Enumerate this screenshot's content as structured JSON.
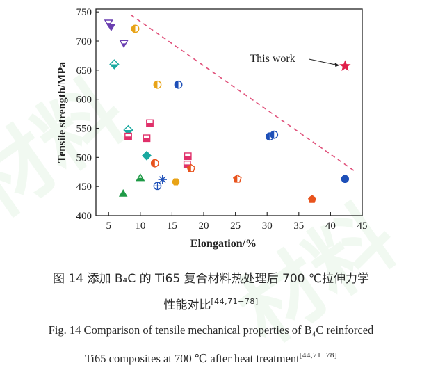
{
  "chart_data": {
    "type": "scatter",
    "xlabel": "Elongation/%",
    "ylabel": "Tensile strength/MPa",
    "xlim": [
      3,
      45
    ],
    "ylim": [
      400,
      755
    ],
    "xticks": [
      5,
      10,
      15,
      20,
      25,
      30,
      35,
      40,
      45
    ],
    "yticks": [
      400,
      450,
      500,
      550,
      600,
      650,
      700,
      750
    ],
    "annotation": {
      "text": "This work",
      "x": 42.3,
      "y": 657
    },
    "trend_line": {
      "style": "dashed",
      "color": "#e0507a",
      "points": [
        [
          8.5,
          745
        ],
        [
          44,
          475
        ]
      ]
    },
    "points": [
      {
        "x": 5.0,
        "y": 731,
        "marker": "tri-down-half",
        "color": "#6a3fb0"
      },
      {
        "x": 5.4,
        "y": 724,
        "marker": "tri-down",
        "color": "#6a3fb0"
      },
      {
        "x": 7.4,
        "y": 696,
        "marker": "tri-down-half",
        "color": "#6a3fb0"
      },
      {
        "x": 9.2,
        "y": 721,
        "marker": "circle-half",
        "color": "#e8a317"
      },
      {
        "x": 5.9,
        "y": 660,
        "marker": "diamond-half",
        "color": "#1aa9a0"
      },
      {
        "x": 12.7,
        "y": 625,
        "marker": "circle-half",
        "color": "#e8a317"
      },
      {
        "x": 16.0,
        "y": 625,
        "marker": "circle-half",
        "color": "#1d4fb8"
      },
      {
        "x": 8.1,
        "y": 547,
        "marker": "diamond-half",
        "color": "#1aa9a0"
      },
      {
        "x": 8.1,
        "y": 536,
        "marker": "square-half",
        "color": "#e0306a"
      },
      {
        "x": 11.5,
        "y": 559,
        "marker": "square-half",
        "color": "#e0306a"
      },
      {
        "x": 11.0,
        "y": 533,
        "marker": "square-half",
        "color": "#e0306a"
      },
      {
        "x": 11.0,
        "y": 503,
        "marker": "diamond",
        "color": "#1aa9a0"
      },
      {
        "x": 12.3,
        "y": 490,
        "marker": "circle-half",
        "color": "#e8531d"
      },
      {
        "x": 17.5,
        "y": 502,
        "marker": "square-half",
        "color": "#e0306a"
      },
      {
        "x": 17.4,
        "y": 488,
        "marker": "square-half",
        "color": "#e0306a"
      },
      {
        "x": 18.0,
        "y": 481,
        "marker": "pentagon-half",
        "color": "#e8531d"
      },
      {
        "x": 7.3,
        "y": 438,
        "marker": "triangle",
        "color": "#1f9a47"
      },
      {
        "x": 10.0,
        "y": 465,
        "marker": "triangle-half",
        "color": "#1f9a47"
      },
      {
        "x": 13.5,
        "y": 462,
        "marker": "asterisk",
        "color": "#1d4fb8"
      },
      {
        "x": 12.7,
        "y": 451,
        "marker": "circle-cross",
        "color": "#1d4fb8"
      },
      {
        "x": 15.6,
        "y": 458,
        "marker": "hexagon",
        "color": "#e8a317"
      },
      {
        "x": 25.3,
        "y": 463,
        "marker": "pentagon-half",
        "color": "#e8531d"
      },
      {
        "x": 30.4,
        "y": 536,
        "marker": "circle-half",
        "color": "#1d4fb8"
      },
      {
        "x": 31.1,
        "y": 539,
        "marker": "circle-half",
        "color": "#1d4fb8"
      },
      {
        "x": 37.1,
        "y": 428,
        "marker": "pentagon",
        "color": "#e8531d"
      },
      {
        "x": 42.3,
        "y": 463,
        "marker": "circle",
        "color": "#1d4fb8"
      },
      {
        "x": 42.3,
        "y": 657,
        "marker": "star",
        "color": "#e0204a"
      }
    ]
  },
  "caption": {
    "zh_line1": "图 14    添加 B₄C 的 Ti65 复合材料热处理后 700 ℃拉伸力学",
    "zh_line2": "性能对比",
    "zh_ref": "[44,71−78]",
    "en_line1": "Fig. 14    Comparison of tensile mechanical properties of B₄C reinforced",
    "en_line2": "Ti65 composites at 700 ℃  after heat treatment",
    "en_ref": "[44,71−78]"
  }
}
